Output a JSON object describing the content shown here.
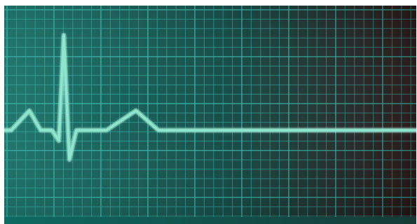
{
  "colors": {
    "background_left": "#0f6f66",
    "background_mid": "#06403c",
    "background_right": "#2a1414",
    "grid_line": "#2fbfae",
    "grid_line_bright": "#5fe0cf",
    "trace": "#8fe6cf",
    "trace_glow": "#c8fff0",
    "frame": "#ffffff",
    "bottom_strip_left": "#0e6a62",
    "bottom_strip_right": "#153a36"
  },
  "icon": "ecg-heartbeat-trace",
  "trace_shape": "single heartbeat complex followed by a flat line"
}
